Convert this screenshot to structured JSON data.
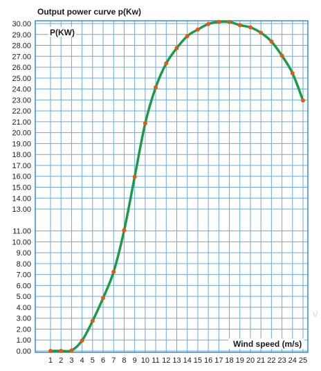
{
  "chart_data": {
    "type": "line",
    "title": "Output power curve p(Kw)",
    "ylabel": "P(KW)",
    "xlabel": "Wind speed (m/s)",
    "x": [
      1,
      2,
      3,
      4,
      5,
      6,
      7,
      8,
      9,
      10,
      11,
      12,
      13,
      14,
      15,
      16,
      17,
      18,
      19,
      20,
      21,
      22,
      23,
      24,
      25
    ],
    "series": [
      {
        "values": [
          0.0,
          0.0,
          0.05,
          0.95,
          2.75,
          4.85,
          7.25,
          11.05,
          15.95,
          20.85,
          24.15,
          26.35,
          27.75,
          28.85,
          29.45,
          29.95,
          30.15,
          30.15,
          29.85,
          29.65,
          29.15,
          28.35,
          27.05,
          25.45,
          22.95
        ]
      }
    ],
    "yticks": [
      "0.00",
      "1.00",
      "2.00",
      "3.00",
      "4.00",
      "5.00",
      "6.00",
      "7.00",
      "8.00",
      "9.00",
      "10.00",
      "11.00",
      "13.00",
      "14.00",
      "15.00",
      "16.00",
      "17.00",
      "18.00",
      "19.00",
      "20.00",
      "21.00",
      "22.00",
      "23.00",
      "24.00",
      "25.00",
      "26.00",
      "27.00",
      "28.00",
      "29.00",
      "30.00"
    ],
    "xticks": [
      "1",
      "2",
      "3",
      "4",
      "5",
      "6",
      "7",
      "8",
      "9",
      "10",
      "11",
      "12",
      "13",
      "14",
      "15",
      "16",
      "17",
      "18",
      "19",
      "20",
      "21",
      "22",
      "23",
      "24",
      "25"
    ],
    "ylim": [
      0,
      30
    ],
    "xlim": [
      1,
      25
    ],
    "grid": true,
    "line_color": "#1a9a4a",
    "marker_color": "#e05a10",
    "grid_color": "#6aaad8",
    "border_color": "#3a8ac8",
    "watermark_glyph": "V"
  }
}
